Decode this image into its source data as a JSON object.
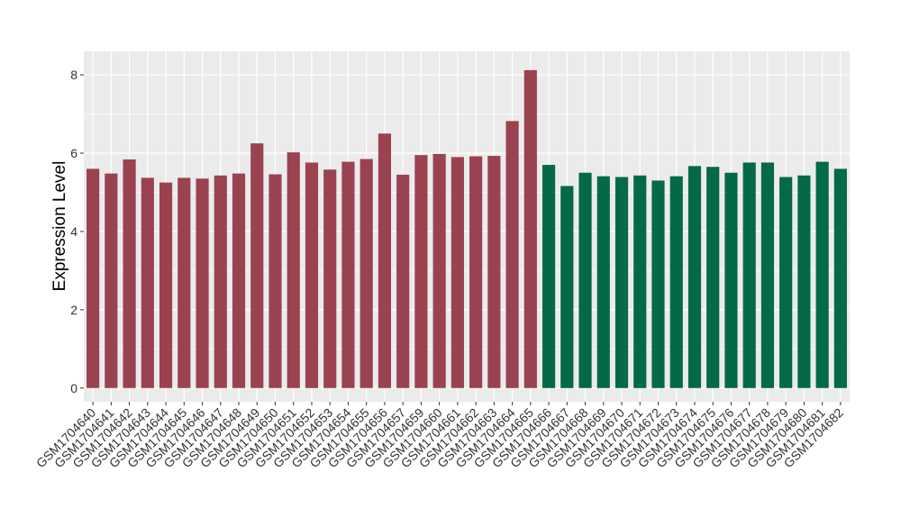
{
  "chart_data": {
    "type": "bar",
    "ylabel": "Expression Level",
    "xlabel": "",
    "ylim": [
      -0.35,
      8.6
    ],
    "yticks": [
      0,
      2,
      4,
      6,
      8
    ],
    "grid": true,
    "colors": {
      "group1": "#9b4250",
      "group2": "#046a45",
      "panel": "#ebebeb",
      "gridline": "#ffffff"
    },
    "categories": [
      "GSM1704640",
      "GSM1704641",
      "GSM1704642",
      "GSM1704643",
      "GSM1704644",
      "GSM1704645",
      "GSM1704646",
      "GSM1704647",
      "GSM1704648",
      "GSM1704649",
      "GSM1704650",
      "GSM1704651",
      "GSM1704652",
      "GSM1704653",
      "GSM1704654",
      "GSM1704655",
      "GSM1704656",
      "GSM1704657",
      "GSM1704659",
      "GSM1704660",
      "GSM1704661",
      "GSM1704662",
      "GSM1704663",
      "GSM1704664",
      "GSM1704665",
      "GSM1704666",
      "GSM1704667",
      "GSM1704668",
      "GSM1704669",
      "GSM1704670",
      "GSM1704671",
      "GSM1704672",
      "GSM1704673",
      "GSM1704674",
      "GSM1704675",
      "GSM1704676",
      "GSM1704677",
      "GSM1704678",
      "GSM1704679",
      "GSM1704680",
      "GSM1704681",
      "GSM1704682"
    ],
    "values": [
      5.6,
      5.48,
      5.84,
      5.37,
      5.25,
      5.37,
      5.35,
      5.43,
      5.48,
      6.25,
      5.46,
      6.02,
      5.76,
      5.58,
      5.78,
      5.85,
      6.5,
      5.45,
      5.95,
      5.98,
      5.9,
      5.92,
      5.93,
      6.82,
      8.12,
      5.7,
      5.16,
      5.5,
      5.41,
      5.39,
      5.43,
      5.3,
      5.41,
      5.67,
      5.65,
      5.5,
      5.76,
      5.76,
      5.39,
      5.43,
      5.78,
      5.6
    ],
    "groups": [
      1,
      1,
      1,
      1,
      1,
      1,
      1,
      1,
      1,
      1,
      1,
      1,
      1,
      1,
      1,
      1,
      1,
      1,
      1,
      1,
      1,
      1,
      1,
      1,
      1,
      2,
      2,
      2,
      2,
      2,
      2,
      2,
      2,
      2,
      2,
      2,
      2,
      2,
      2,
      2,
      2,
      2
    ]
  }
}
